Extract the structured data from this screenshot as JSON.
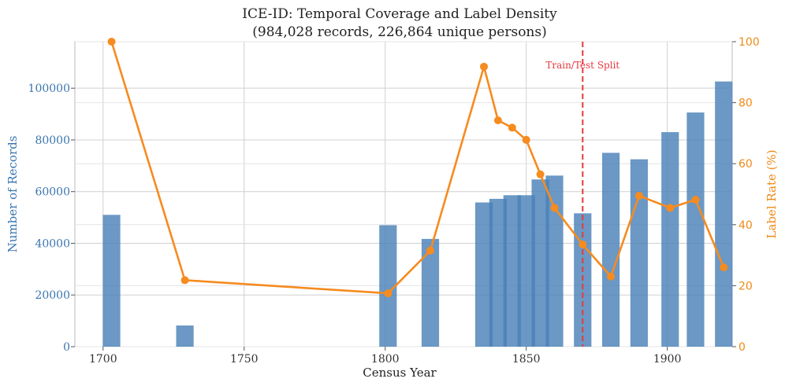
{
  "chart_data": {
    "type": "bar",
    "title": "ICE-ID: Temporal Coverage and Label Density",
    "subtitle": "(984,028 records, 226,864 unique persons)",
    "xlabel": "Census Year",
    "ylabel": "Number of Records",
    "y2label": "Label Rate (%)",
    "xlim": [
      1690,
      1923
    ],
    "ylim": [
      0,
      118000
    ],
    "y2lim": [
      0,
      100
    ],
    "x_ticks": [
      1700,
      1750,
      1800,
      1850,
      1900
    ],
    "y_ticks": [
      0,
      20000,
      40000,
      60000,
      80000,
      100000
    ],
    "y2_ticks": [
      0,
      20,
      40,
      60,
      80,
      100
    ],
    "grid": true,
    "colors": {
      "bars": "#4a81b8",
      "line": "#f68b1f",
      "split": "#e8383d",
      "left_axis": "#3b75af",
      "right_axis": "#ef8a17"
    },
    "series": [
      {
        "name": "Number of Records",
        "kind": "bar",
        "x": [
          1703,
          1729,
          1801,
          1816,
          1835,
          1840,
          1845,
          1850,
          1855,
          1860,
          1870,
          1880,
          1890,
          1901,
          1910,
          1920
        ],
        "values": [
          51000,
          8200,
          47000,
          41700,
          55800,
          57200,
          58600,
          58600,
          64700,
          66200,
          51600,
          75000,
          72500,
          83000,
          90600,
          102600
        ]
      },
      {
        "name": "Label Rate (%)",
        "kind": "line",
        "x": [
          1703,
          1729,
          1801,
          1816,
          1835,
          1840,
          1845,
          1850,
          1855,
          1860,
          1870,
          1880,
          1890,
          1901,
          1910,
          1920
        ],
        "values": [
          100,
          21.8,
          17.5,
          31.5,
          91.8,
          74.2,
          71.8,
          67.8,
          56.5,
          45.5,
          33.5,
          23.0,
          49.5,
          45.5,
          48.2,
          26.0
        ]
      }
    ],
    "annotations": [
      {
        "text": "Train/Test Split",
        "x": 1870,
        "kind": "vertical-dashed-line"
      }
    ]
  }
}
